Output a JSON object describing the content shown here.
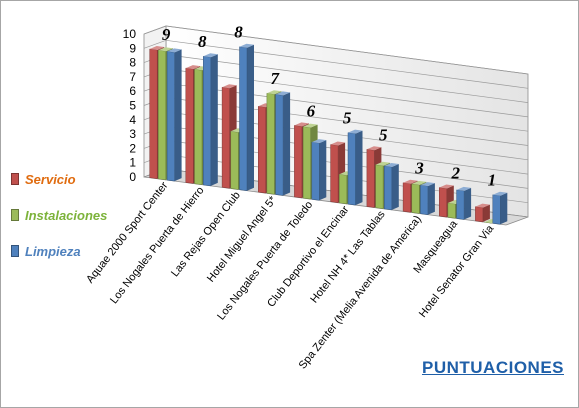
{
  "chart_data": {
    "type": "bar",
    "subtype": "3d-clustered-column",
    "title": "PUNTUACIONES",
    "categories": [
      "Aquae 2000 Sport Center",
      "Los Nogales Puerta de Hierro",
      "Las Rejas Open Club",
      "Hotel Miguel Angel 5*",
      "Los Nogales Puerta de Toledo",
      "Club Deportivo el Encinar",
      "Hotel NH 4* Las Tablas",
      "Spa Zenter (Melia Avenida de America)",
      "Masqueagua",
      "Hotel Senator Gran Via"
    ],
    "rank_labels": [
      "9",
      "8",
      "8",
      "7",
      "6",
      "5",
      "5",
      "3",
      "2",
      "1"
    ],
    "series": [
      {
        "name": "Servicio",
        "color": "#c0504d",
        "values": [
          9,
          8,
          7,
          6,
          5,
          4,
          4,
          2,
          2,
          1
        ]
      },
      {
        "name": "Instalaciones",
        "color": "#9bbb59",
        "values": [
          9,
          8,
          4,
          7,
          5,
          2,
          3,
          2,
          1,
          0
        ]
      },
      {
        "name": "Limpieza",
        "color": "#4f81bd",
        "values": [
          9,
          9,
          10,
          7,
          4,
          5,
          3,
          2,
          2,
          2
        ]
      }
    ],
    "yticks": [
      "0",
      "1",
      "2",
      "3",
      "4",
      "5",
      "6",
      "7",
      "8",
      "9",
      "10"
    ],
    "ylim": [
      0,
      10
    ],
    "grid": true,
    "legend_position": "left",
    "legend_label_colors": [
      "#e06c10",
      "#7db33b",
      "#4f81bd"
    ]
  }
}
